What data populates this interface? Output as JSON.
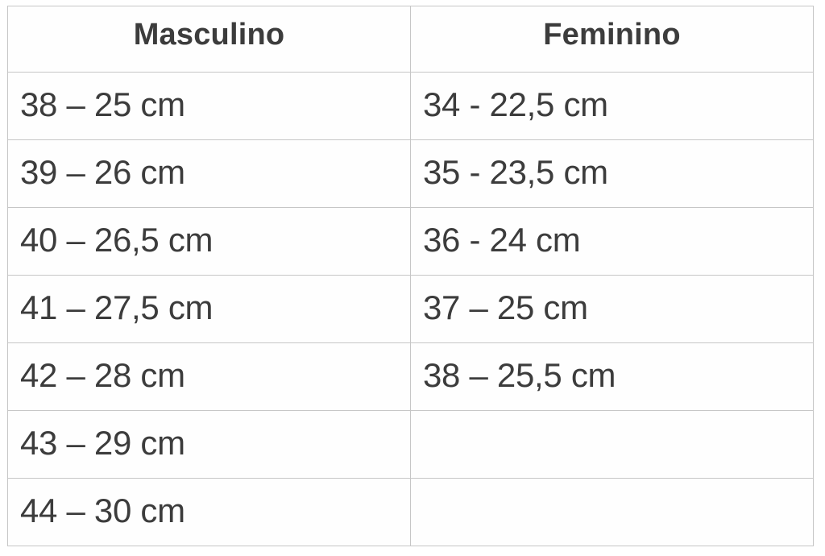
{
  "table": {
    "headers": [
      "Masculino",
      "Feminino"
    ],
    "rows": [
      [
        "38 – 25 cm",
        "34 - 22,5 cm"
      ],
      [
        "39 – 26 cm",
        "35 - 23,5 cm"
      ],
      [
        "40 – 26,5 cm",
        "36 - 24 cm"
      ],
      [
        "41 – 27,5 cm",
        "37 – 25 cm"
      ],
      [
        "42 – 28 cm",
        "38 – 25,5 cm"
      ],
      [
        "43 – 29 cm",
        ""
      ],
      [
        "44 – 30 cm",
        ""
      ]
    ]
  },
  "colors": {
    "text": "#3c3c3c",
    "border": "#c6c6c6",
    "background": "#ffffff"
  },
  "chart_data": {
    "type": "table",
    "title": "",
    "columns": [
      "Masculino",
      "Feminino"
    ],
    "rows": [
      [
        "38 – 25 cm",
        "34 - 22,5 cm"
      ],
      [
        "39 – 26 cm",
        "35 - 23,5 cm"
      ],
      [
        "40 – 26,5 cm",
        "36 - 24 cm"
      ],
      [
        "41 – 27,5 cm",
        "37 – 25 cm"
      ],
      [
        "42 – 28 cm",
        "38 – 25,5 cm"
      ],
      [
        "43 – 29 cm",
        ""
      ],
      [
        "44 – 30 cm",
        ""
      ]
    ]
  }
}
